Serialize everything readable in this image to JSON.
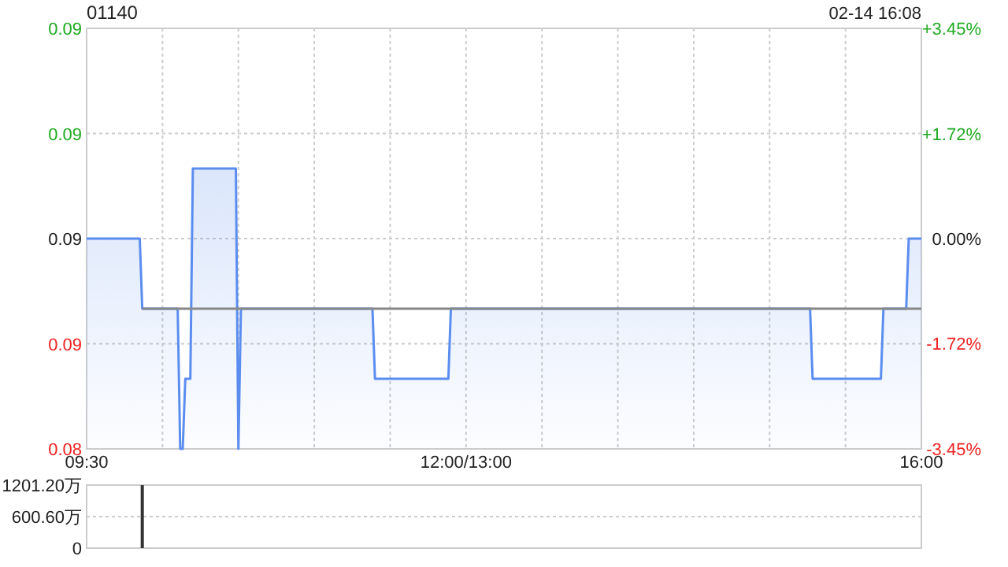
{
  "chart_data": [
    {
      "type": "area",
      "title": "01140",
      "annotations": [
        "02-14 16:08"
      ],
      "categories": [
        "09:30",
        null,
        null,
        null,
        null,
        null,
        null,
        null,
        null,
        null,
        null,
        null,
        null,
        null,
        null,
        null,
        null,
        null,
        null,
        null,
        null,
        null,
        null,
        null,
        null,
        null,
        null,
        null,
        null,
        null,
        null,
        null,
        null,
        null,
        null,
        null,
        null,
        null,
        null,
        null,
        null,
        null,
        null,
        null,
        null,
        null,
        null,
        null,
        null,
        null,
        null,
        null,
        null,
        null,
        null,
        null,
        null,
        null,
        null,
        null,
        null,
        null,
        null,
        null,
        null,
        null,
        null,
        null,
        null,
        null,
        null,
        null,
        null,
        null,
        null,
        null,
        null,
        null,
        null,
        null,
        null,
        null,
        null,
        null,
        null,
        null,
        null,
        null,
        null,
        null,
        null,
        null,
        null,
        null,
        null,
        null,
        null,
        null,
        null,
        null,
        null,
        null,
        null,
        null,
        null,
        null,
        null,
        null,
        null,
        null,
        null,
        null,
        null,
        null,
        null,
        null,
        null,
        null,
        null,
        null,
        null,
        null,
        null,
        null,
        null,
        null,
        null,
        null,
        null,
        null,
        null,
        null,
        null,
        null,
        null,
        null,
        null,
        null,
        null,
        null,
        null,
        null,
        null,
        null,
        null,
        null,
        null,
        null,
        null,
        null,
        "12:00/13:00",
        null,
        null,
        null,
        null,
        null,
        null,
        null,
        null,
        null,
        null,
        null,
        null,
        null,
        null,
        null,
        null,
        null,
        null,
        null,
        null,
        null,
        null,
        null,
        null,
        null,
        null,
        null,
        null,
        null,
        null,
        null,
        null,
        null,
        null,
        null,
        null,
        null,
        null,
        null,
        null,
        null,
        null,
        null,
        null,
        null,
        null,
        null,
        null,
        null,
        null,
        null,
        null,
        null,
        null,
        null,
        null,
        null,
        null,
        null,
        null,
        null,
        null,
        null,
        null,
        null,
        null,
        null,
        null,
        null,
        null,
        null,
        null,
        null,
        null,
        null,
        null,
        null,
        null,
        null,
        null,
        null,
        null,
        null,
        null,
        null,
        null,
        null,
        null,
        null,
        null,
        null,
        null,
        null,
        null,
        null,
        null,
        null,
        null,
        null,
        null,
        null,
        null,
        null,
        null,
        null,
        null,
        null,
        null,
        null,
        null,
        null,
        null,
        null,
        null,
        null,
        null,
        null,
        null,
        null,
        null,
        null,
        null,
        null,
        null,
        null,
        null,
        null,
        null,
        null,
        null,
        null,
        null,
        null,
        null,
        null,
        null,
        null,
        null,
        null,
        null,
        null,
        null,
        null,
        null,
        null,
        null,
        null,
        null,
        null,
        null,
        null,
        null,
        null,
        null,
        null,
        null,
        null,
        null,
        null,
        null,
        null,
        null,
        null,
        null,
        null,
        null,
        null,
        null,
        null,
        null,
        null,
        null,
        null,
        null,
        null,
        null,
        null,
        null,
        null,
        "16:00"
      ],
      "ylim": [
        0.084,
        0.09
      ],
      "yticks": [
        {
          "value": 0.09,
          "label": "0.09"
        },
        {
          "value": 0.0885,
          "label": "0.09"
        },
        {
          "value": 0.087,
          "label": "0.09"
        },
        {
          "value": 0.0855,
          "label": "0.09"
        },
        {
          "value": 0.084,
          "label": "0.08"
        }
      ],
      "y2lim": [
        -3.45,
        3.45
      ],
      "y2ticks": [
        {
          "value": 3.45,
          "label": "+3.45%"
        },
        {
          "value": 1.72,
          "label": "+1.72%"
        },
        {
          "value": 0,
          "label": "0.00%"
        },
        {
          "value": -1.72,
          "label": "-1.72%"
        },
        {
          "value": -3.45,
          "label": "-3.45%"
        }
      ],
      "grid": true,
      "series": [
        {
          "color": "#5b8def",
          "values": [
            0.087,
            0.087,
            0.087,
            0.087,
            0.087,
            0.087,
            0.087,
            0.087,
            0.087,
            0.087,
            0.087,
            0.087,
            0.087,
            0.087,
            0.087,
            0.087,
            0.087,
            0.087,
            0.087,
            0.087,
            0.087,
            0.087,
            0.086,
            0.086,
            0.086,
            0.086,
            0.086,
            0.086,
            0.086,
            0.086,
            0.086,
            0.086,
            0.086,
            0.086,
            0.086,
            0.086,
            0.086,
            0.084,
            0.084,
            0.085,
            0.085,
            0.085,
            0.088,
            0.088,
            0.088,
            0.088,
            0.088,
            0.088,
            0.088,
            0.088,
            0.088,
            0.088,
            0.088,
            0.088,
            0.088,
            0.088,
            0.088,
            0.088,
            0.088,
            0.088,
            0.084,
            0.086,
            0.086,
            0.086,
            0.086,
            0.086,
            0.086,
            0.086,
            0.086,
            0.086,
            0.086,
            0.086,
            0.086,
            0.086,
            0.086,
            0.086,
            0.086,
            0.086,
            0.086,
            0.086,
            0.086,
            0.086,
            0.086,
            0.086,
            0.086,
            0.086,
            0.086,
            0.086,
            0.086,
            0.086,
            0.086,
            0.086,
            0.086,
            0.086,
            0.086,
            0.086,
            0.086,
            0.086,
            0.086,
            0.086,
            0.086,
            0.086,
            0.086,
            0.086,
            0.086,
            0.086,
            0.086,
            0.086,
            0.086,
            0.086,
            0.086,
            0.086,
            0.086,
            0.086,
            0.085,
            0.085,
            0.085,
            0.085,
            0.085,
            0.085,
            0.085,
            0.085,
            0.085,
            0.085,
            0.085,
            0.085,
            0.085,
            0.085,
            0.085,
            0.085,
            0.085,
            0.085,
            0.085,
            0.085,
            0.085,
            0.085,
            0.085,
            0.085,
            0.085,
            0.085,
            0.085,
            0.085,
            0.085,
            0.085,
            0.086,
            0.086,
            0.086,
            0.086,
            0.086,
            0.086,
            0.086,
            0.086,
            0.086,
            0.086,
            0.086,
            0.086,
            0.086,
            0.086,
            0.086,
            0.086,
            0.086,
            0.086,
            0.086,
            0.086,
            0.086,
            0.086,
            0.086,
            0.086,
            0.086,
            0.086,
            0.086,
            0.086,
            0.086,
            0.086,
            0.086,
            0.086,
            0.086,
            0.086,
            0.086,
            0.086,
            0.086,
            0.086,
            0.086,
            0.086,
            0.086,
            0.086,
            0.086,
            0.086,
            0.086,
            0.086,
            0.086,
            0.086,
            0.086,
            0.086,
            0.086,
            0.086,
            0.086,
            0.086,
            0.086,
            0.086,
            0.086,
            0.086,
            0.086,
            0.086,
            0.086,
            0.086,
            0.086,
            0.086,
            0.086,
            0.086,
            0.086,
            0.086,
            0.086,
            0.086,
            0.086,
            0.086,
            0.086,
            0.086,
            0.086,
            0.086,
            0.086,
            0.086,
            0.086,
            0.086,
            0.086,
            0.086,
            0.086,
            0.086,
            0.086,
            0.086,
            0.086,
            0.086,
            0.086,
            0.086,
            0.086,
            0.086,
            0.086,
            0.086,
            0.086,
            0.086,
            0.086,
            0.086,
            0.086,
            0.086,
            0.086,
            0.086,
            0.086,
            0.086,
            0.086,
            0.086,
            0.086,
            0.086,
            0.086,
            0.086,
            0.086,
            0.086,
            0.086,
            0.086,
            0.086,
            0.086,
            0.086,
            0.086,
            0.086,
            0.086,
            0.086,
            0.086,
            0.086,
            0.086,
            0.086,
            0.086,
            0.086,
            0.086,
            0.086,
            0.086,
            0.086,
            0.086,
            0.086,
            0.086,
            0.086,
            0.086,
            0.086,
            0.086,
            0.086,
            0.086,
            0.086,
            0.086,
            0.086,
            0.085,
            0.085,
            0.085,
            0.085,
            0.085,
            0.085,
            0.085,
            0.085,
            0.085,
            0.085,
            0.085,
            0.085,
            0.085,
            0.085,
            0.085,
            0.085,
            0.085,
            0.085,
            0.085,
            0.085,
            0.085,
            0.085,
            0.085,
            0.085,
            0.085,
            0.085,
            0.085,
            0.085,
            0.086,
            0.086,
            0.086,
            0.086,
            0.086,
            0.086,
            0.086,
            0.086,
            0.086,
            0.086,
            0.087,
            0.087,
            0.087,
            0.087,
            0.087,
            0.087
          ]
        },
        {
          "type": "line",
          "color": "#888888",
          "values": [
            null,
            null,
            null,
            null,
            null,
            null,
            null,
            null,
            null,
            null,
            null,
            null,
            null,
            null,
            null,
            null,
            null,
            null,
            null,
            null,
            null,
            null,
            0.086,
            0.086,
            0.086,
            0.086,
            0.086,
            0.086,
            0.086,
            0.086,
            0.086,
            0.086,
            0.086,
            0.086,
            0.086,
            0.086,
            0.086,
            0.086,
            0.086,
            0.086,
            0.086,
            0.086,
            0.086,
            0.086,
            0.086,
            0.086,
            0.086,
            0.086,
            0.086,
            0.086,
            0.086,
            0.086,
            0.086,
            0.086,
            0.086,
            0.086,
            0.086,
            0.086,
            0.086,
            0.086,
            0.086,
            0.086,
            0.086,
            0.086,
            0.086,
            0.086,
            0.086,
            0.086,
            0.086,
            0.086,
            0.086,
            0.086,
            0.086,
            0.086,
            0.086,
            0.086,
            0.086,
            0.086,
            0.086,
            0.086,
            0.086,
            0.086,
            0.086,
            0.086,
            0.086,
            0.086,
            0.086,
            0.086,
            0.086,
            0.086,
            0.086,
            0.086,
            0.086,
            0.086,
            0.086,
            0.086,
            0.086,
            0.086,
            0.086,
            0.086,
            0.086,
            0.086,
            0.086,
            0.086,
            0.086,
            0.086,
            0.086,
            0.086,
            0.086,
            0.086,
            0.086,
            0.086,
            0.086,
            0.086,
            0.086,
            0.086,
            0.086,
            0.086,
            0.086,
            0.086,
            0.086,
            0.086,
            0.086,
            0.086,
            0.086,
            0.086,
            0.086,
            0.086,
            0.086,
            0.086,
            0.086,
            0.086,
            0.086,
            0.086,
            0.086,
            0.086,
            0.086,
            0.086,
            0.086,
            0.086,
            0.086,
            0.086,
            0.086,
            0.086,
            0.086,
            0.086,
            0.086,
            0.086,
            0.086,
            0.086,
            0.086,
            0.086,
            0.086,
            0.086,
            0.086,
            0.086,
            0.086,
            0.086,
            0.086,
            0.086,
            0.086,
            0.086,
            0.086,
            0.086,
            0.086,
            0.086,
            0.086,
            0.086,
            0.086,
            0.086,
            0.086,
            0.086,
            0.086,
            0.086,
            0.086,
            0.086,
            0.086,
            0.086,
            0.086,
            0.086,
            0.086,
            0.086,
            0.086,
            0.086,
            0.086,
            0.086,
            0.086,
            0.086,
            0.086,
            0.086,
            0.086,
            0.086,
            0.086,
            0.086,
            0.086,
            0.086,
            0.086,
            0.086,
            0.086,
            0.086,
            0.086,
            0.086,
            0.086,
            0.086,
            0.086,
            0.086,
            0.086,
            0.086,
            0.086,
            0.086,
            0.086,
            0.086,
            0.086,
            0.086,
            0.086,
            0.086,
            0.086,
            0.086,
            0.086,
            0.086,
            0.086,
            0.086,
            0.086,
            0.086,
            0.086,
            0.086,
            0.086,
            0.086,
            0.086,
            0.086,
            0.086,
            0.086,
            0.086,
            0.086,
            0.086,
            0.086,
            0.086,
            0.086,
            0.086,
            0.086,
            0.086,
            0.086,
            0.086,
            0.086,
            0.086,
            0.086,
            0.086,
            0.086,
            0.086,
            0.086,
            0.086,
            0.086,
            0.086,
            0.086,
            0.086,
            0.086,
            0.086,
            0.086,
            0.086,
            0.086,
            0.086,
            0.086,
            0.086,
            0.086,
            0.086,
            0.086,
            0.086,
            0.086,
            0.086,
            0.086,
            0.086,
            0.086,
            0.086,
            0.086,
            0.086,
            0.086,
            0.086,
            0.086,
            0.086,
            0.086,
            0.086,
            0.086,
            0.086,
            0.086,
            0.086,
            0.086,
            0.086,
            0.086,
            0.086,
            0.086,
            0.086,
            0.086,
            0.086,
            0.086,
            0.086,
            0.086,
            0.086,
            0.086,
            0.086,
            0.086,
            0.086,
            0.086,
            0.086,
            0.086,
            0.086,
            0.086,
            0.086,
            0.086,
            0.086,
            0.086,
            0.086,
            0.086,
            0.086,
            0.086,
            0.086,
            0.086,
            0.086,
            0.086,
            0.086,
            0.086,
            0.086,
            0.086,
            0.086,
            0.086,
            0.086,
            0.086,
            0.086,
            0.086,
            0.086,
            0.086,
            0.086
          ]
        }
      ]
    },
    {
      "type": "bar",
      "color": "#333333",
      "categories": [
        null,
        null,
        null,
        null,
        null,
        null,
        null,
        null,
        null,
        null,
        null,
        null,
        null,
        null,
        null,
        null,
        null,
        null,
        null,
        null,
        null,
        null,
        null,
        null,
        null,
        null,
        null,
        null,
        null,
        null,
        null,
        null,
        null,
        null,
        null,
        null,
        null,
        null,
        null,
        null,
        null,
        null,
        null,
        null,
        null,
        null,
        null,
        null,
        null,
        null,
        null,
        null,
        null,
        null,
        null,
        null,
        null,
        null,
        null,
        null,
        null,
        null,
        null,
        null,
        null,
        null,
        null,
        null,
        null,
        null,
        null,
        null,
        null,
        null,
        null,
        null,
        null,
        null,
        null,
        null,
        null,
        null,
        null,
        null,
        null,
        null,
        null,
        null,
        null,
        null,
        null,
        null,
        null,
        null,
        null,
        null,
        null,
        null,
        null,
        null,
        null,
        null,
        null,
        null,
        null,
        null,
        null,
        null,
        null,
        null,
        null,
        null,
        null,
        null,
        null,
        null,
        null,
        null,
        null,
        null,
        null,
        null,
        null,
        null,
        null,
        null,
        null,
        null,
        null,
        null,
        null,
        null,
        null,
        null,
        null,
        null,
        null,
        null,
        null,
        null,
        null,
        null,
        null,
        null,
        null,
        null,
        null,
        null,
        null,
        null,
        null,
        null,
        null,
        null,
        null,
        null,
        null,
        null,
        null,
        null,
        null,
        null,
        null,
        null,
        null,
        null,
        null,
        null,
        null,
        null,
        null,
        null,
        null,
        null,
        null,
        null,
        null,
        null,
        null,
        null,
        null,
        null,
        null,
        null,
        null,
        null,
        null,
        null,
        null,
        null,
        null,
        null,
        null,
        null,
        null,
        null,
        null,
        null,
        null,
        null,
        null,
        null,
        null,
        null,
        null,
        null,
        null,
        null,
        null,
        null,
        null,
        null,
        null,
        null,
        null,
        null,
        null,
        null,
        null,
        null,
        null,
        null,
        null,
        null,
        null,
        null,
        null,
        null,
        null,
        null,
        null,
        null,
        null,
        null,
        null,
        null,
        null,
        null,
        null,
        null,
        null,
        null,
        null,
        null,
        null,
        null,
        null,
        null,
        null,
        null,
        null,
        null,
        null,
        null,
        null,
        null,
        null,
        null,
        null,
        null,
        null,
        null,
        null,
        null,
        null,
        null,
        null,
        null,
        null,
        null,
        null,
        null,
        null,
        null,
        null,
        null,
        null,
        null,
        null,
        null,
        null,
        null,
        null,
        null,
        null,
        null,
        null,
        null,
        null,
        null,
        null,
        null,
        null,
        null,
        null,
        null,
        null,
        null,
        null,
        null,
        null,
        null,
        null,
        null,
        null,
        null,
        null,
        null,
        null,
        null,
        null,
        null,
        null,
        null,
        null,
        null,
        null,
        null,
        null,
        null,
        null,
        null,
        null,
        null,
        null,
        null,
        null,
        null,
        null,
        null,
        null
      ],
      "values": [
        null,
        null,
        null,
        null,
        null,
        null,
        null,
        null,
        null,
        null,
        null,
        null,
        null,
        null,
        null,
        null,
        null,
        null,
        null,
        null,
        null,
        null,
        1200,
        null,
        null,
        null,
        null,
        null,
        null,
        null,
        null,
        null,
        null,
        null,
        null,
        null,
        null,
        null,
        null,
        null,
        null,
        null,
        null,
        null,
        null,
        null,
        null,
        null,
        null,
        null,
        null,
        null,
        null,
        null,
        null,
        null,
        null,
        null,
        null,
        null,
        null,
        null,
        null,
        null,
        null,
        null,
        null,
        null,
        null,
        null,
        null,
        null,
        null,
        null,
        null,
        null,
        null,
        null,
        null,
        null,
        null,
        null,
        null,
        null,
        null,
        null,
        null,
        null,
        null,
        null,
        null,
        null,
        null,
        null,
        null,
        null,
        null,
        null,
        null,
        null,
        null,
        null,
        null,
        null,
        null,
        null,
        null,
        null,
        null,
        null,
        null,
        null,
        null,
        null,
        null,
        null,
        null,
        null,
        null,
        null,
        null,
        null,
        null,
        null,
        null,
        null,
        null,
        null,
        null,
        null,
        null,
        null,
        null,
        null,
        null,
        null,
        null,
        null,
        null,
        null,
        null,
        null,
        null,
        null,
        null,
        null,
        null,
        null,
        null,
        null,
        null,
        null,
        null,
        null,
        null,
        null,
        null,
        null,
        null,
        null,
        null,
        null,
        null,
        null,
        null,
        null,
        null,
        null,
        null,
        null,
        null,
        null,
        null,
        null,
        null,
        null,
        null,
        null,
        null,
        null,
        null,
        null,
        null,
        null,
        null,
        null,
        null,
        null,
        null,
        null,
        null,
        null,
        null,
        null,
        null,
        null,
        null,
        null,
        null,
        null,
        null,
        null,
        null,
        null,
        null,
        null,
        null,
        null,
        null,
        null,
        null,
        null,
        null,
        null,
        null,
        null,
        null,
        null,
        null,
        null,
        null,
        null,
        null,
        null,
        null,
        null,
        null,
        null,
        null,
        null,
        null,
        null,
        null,
        null,
        null,
        null,
        null,
        null,
        null,
        null,
        null,
        null,
        null,
        null,
        null,
        null,
        null,
        null,
        null,
        null,
        null,
        null,
        null,
        null,
        null,
        null,
        null,
        null,
        null,
        null,
        null,
        null,
        null,
        null,
        null,
        null,
        null,
        null,
        null,
        null,
        null,
        null,
        null,
        null,
        null,
        null,
        null,
        null,
        null,
        null,
        null,
        null,
        null,
        null,
        null,
        null,
        null,
        null,
        null,
        null,
        null,
        null,
        null,
        null,
        null,
        null,
        null,
        null,
        null,
        null,
        null,
        null,
        null,
        null,
        null,
        null,
        null,
        null,
        null,
        null,
        null,
        null,
        null,
        null,
        null,
        null,
        null,
        null,
        null,
        null,
        null,
        null,
        null,
        null,
        null,
        null,
        null,
        null,
        null,
        null,
        null
      ],
      "ylim": [
        0,
        1201.2
      ],
      "yticks": [
        {
          "value": 0,
          "label": "0"
        },
        {
          "value": 600.6,
          "label": "600.60万"
        },
        {
          "value": 1201.2,
          "label": "1201.20万"
        }
      ],
      "grid": "y",
      "tick_labels": "y"
    }
  ]
}
